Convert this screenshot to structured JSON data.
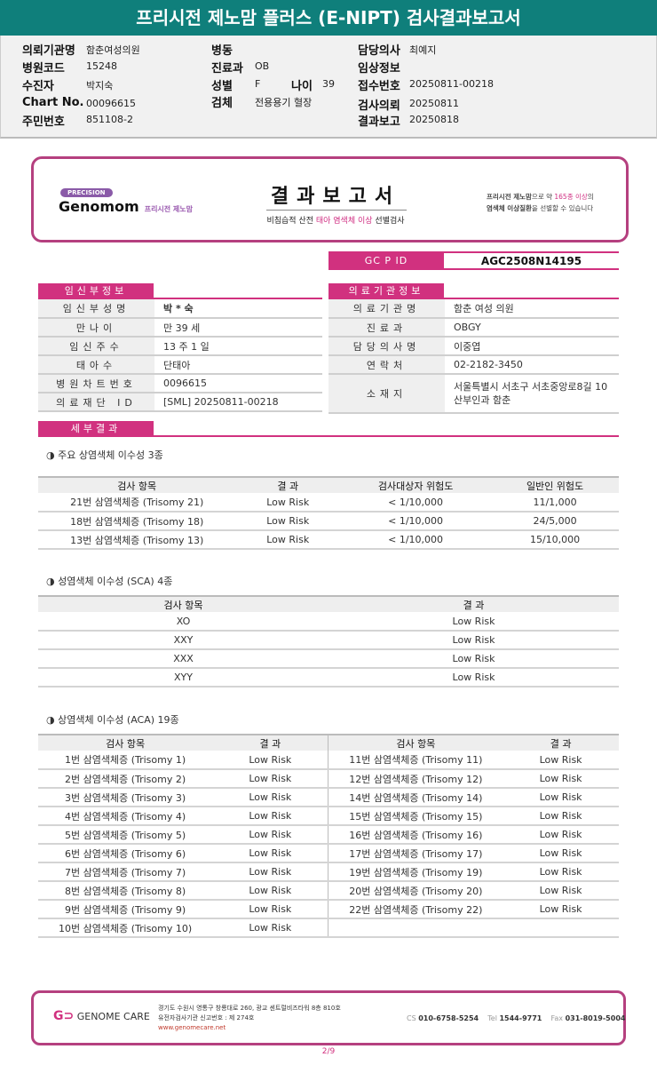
{
  "title": "프리시전 제노맘 플러스 (E-NIPT) 검사결과보고서",
  "info": {
    "col1": [
      {
        "k": "의뢰기관명",
        "v": "함춘여성의원"
      },
      {
        "k": "병원코드",
        "v": "15248"
      },
      {
        "k": "수진자",
        "v": "박지숙"
      },
      {
        "k": "Chart No.",
        "v": "00096615"
      },
      {
        "k": "주민번호",
        "v": "851108-2"
      }
    ],
    "col2": [
      {
        "k": "병동",
        "v": ""
      },
      {
        "k": "진료과",
        "v": "OB"
      },
      {
        "k": "성별",
        "v": "F"
      },
      {
        "k": "검체",
        "v": "전용용기 혈장"
      }
    ],
    "age_k": "나이",
    "age_v": "39",
    "col3": [
      {
        "k": "담당의사",
        "v": "최예지"
      },
      {
        "k": "임상정보",
        "v": ""
      },
      {
        "k": "접수번호",
        "v": "20250811-00218"
      },
      {
        "k": "검사의뢰",
        "v": "20250811"
      },
      {
        "k": "결과보고",
        "v": "20250818"
      }
    ]
  },
  "card": {
    "pill": "PRECISION",
    "brand": "Genomom",
    "brand_kr": "프리시전 제노맘",
    "title": "결과보고서",
    "sub1": "비침습적 산전 ",
    "sub2": "태아 염색체 이상",
    "sub3": " 선별검사",
    "note1a": "프리시전 제노맘",
    "note1b": "으로 약 ",
    "note1c": "165종 이상",
    "note1d": "의",
    "note2a": "염색체 이상질환",
    "note2b": "을 선별할 수 있습니다"
  },
  "gcpid": {
    "label": "GC P ID",
    "value": "AGC2508N14195"
  },
  "patient": {
    "header": "임신부정보",
    "rows": [
      [
        "임신부성명",
        "박 * 숙"
      ],
      [
        "만나이",
        "만 39 세"
      ],
      [
        "임신주수",
        "13 주 1 일"
      ],
      [
        "태아수",
        "단태아"
      ],
      [
        "병원차트번호",
        "0096615"
      ],
      [
        "의료재단 ID",
        "[SML] 20250811-00218"
      ]
    ]
  },
  "hospital": {
    "header": "의료기관정보",
    "rows": [
      [
        "의료기관명",
        "함춘 여성 의원"
      ],
      [
        "진료과",
        "OBGY"
      ],
      [
        "담당의사명",
        "이중엽"
      ],
      [
        "연락처",
        "02-2182-3450"
      ],
      [
        "소재지",
        "서울특별시 서초구 서초중앙로8길 10 산부인과 함춘"
      ]
    ]
  },
  "detail_header": "세부결과",
  "major": {
    "title": "◑ 주요 상염색체 이수성 3종",
    "headers": [
      "검사 항목",
      "결 과",
      "검사대상자 위험도",
      "일반인 위험도"
    ],
    "rows": [
      [
        "21번 삼염색체증 (Trisomy 21)",
        "Low Risk",
        "< 1/10,000",
        "11/1,000"
      ],
      [
        "18번 삼염색체증 (Trisomy 18)",
        "Low Risk",
        "< 1/10,000",
        "24/5,000"
      ],
      [
        "13번 삼염색체증 (Trisomy 13)",
        "Low Risk",
        "< 1/10,000",
        "15/10,000"
      ]
    ]
  },
  "sca": {
    "title": "◑ 성염색체 이수성 (SCA) 4종",
    "headers": [
      "검사 항목",
      "결 과"
    ],
    "rows": [
      [
        "XO",
        "Low Risk"
      ],
      [
        "XXY",
        "Low Risk"
      ],
      [
        "XXX",
        "Low Risk"
      ],
      [
        "XYY",
        "Low Risk"
      ]
    ]
  },
  "aca": {
    "title": "◑ 상염색체 이수성 (ACA) 19종",
    "headers": [
      "검사 항목",
      "결 과",
      "검사 항목",
      "결 과"
    ],
    "rows": [
      [
        "1번 삼염색체증 (Trisomy 1)",
        "Low Risk",
        "11번 삼염색체증 (Trisomy 11)",
        "Low Risk"
      ],
      [
        "2번 삼염색체증 (Trisomy 2)",
        "Low Risk",
        "12번 삼염색체증 (Trisomy 12)",
        "Low Risk"
      ],
      [
        "3번 삼염색체증 (Trisomy 3)",
        "Low Risk",
        "14번 삼염색체증 (Trisomy 14)",
        "Low Risk"
      ],
      [
        "4번 삼염색체증 (Trisomy 4)",
        "Low Risk",
        "15번 삼염색체증 (Trisomy 15)",
        "Low Risk"
      ],
      [
        "5번 삼염색체증 (Trisomy 5)",
        "Low Risk",
        "16번 삼염색체증 (Trisomy 16)",
        "Low Risk"
      ],
      [
        "6번 삼염색체증 (Trisomy 6)",
        "Low Risk",
        "17번 삼염색체증 (Trisomy 17)",
        "Low Risk"
      ],
      [
        "7번 삼염색체증 (Trisomy 7)",
        "Low Risk",
        "19번 삼염색체증 (Trisomy 19)",
        "Low Risk"
      ],
      [
        "8번 삼염색체증 (Trisomy 8)",
        "Low Risk",
        "20번 삼염색체증 (Trisomy 20)",
        "Low Risk"
      ],
      [
        "9번 삼염색체증 (Trisomy 9)",
        "Low Risk",
        "22번 삼염색체증 (Trisomy 22)",
        "Low Risk"
      ],
      [
        "10번 삼염색체증 (Trisomy 10)",
        "Low Risk",
        "",
        ""
      ]
    ]
  },
  "footer": {
    "logo": "GENOME CARE",
    "addr": "경기도 수원시 영통구 창룡대로 260, 광교 센트럴비즈타워 8층 810호",
    "reg": "유전자검사기관 신고번호 : 제 274호",
    "web": "www.genomecare.net",
    "cs_k": "CS",
    "cs": "010-6758-5254",
    "tel_k": "Tel",
    "tel": "1544-9771",
    "fax_k": "Fax",
    "fax": "031-8019-5004"
  },
  "page": "2/9",
  "colors": {
    "title_bar": "#0f7f7b",
    "accent": "#d1317f",
    "card_border": "#b5407f"
  }
}
